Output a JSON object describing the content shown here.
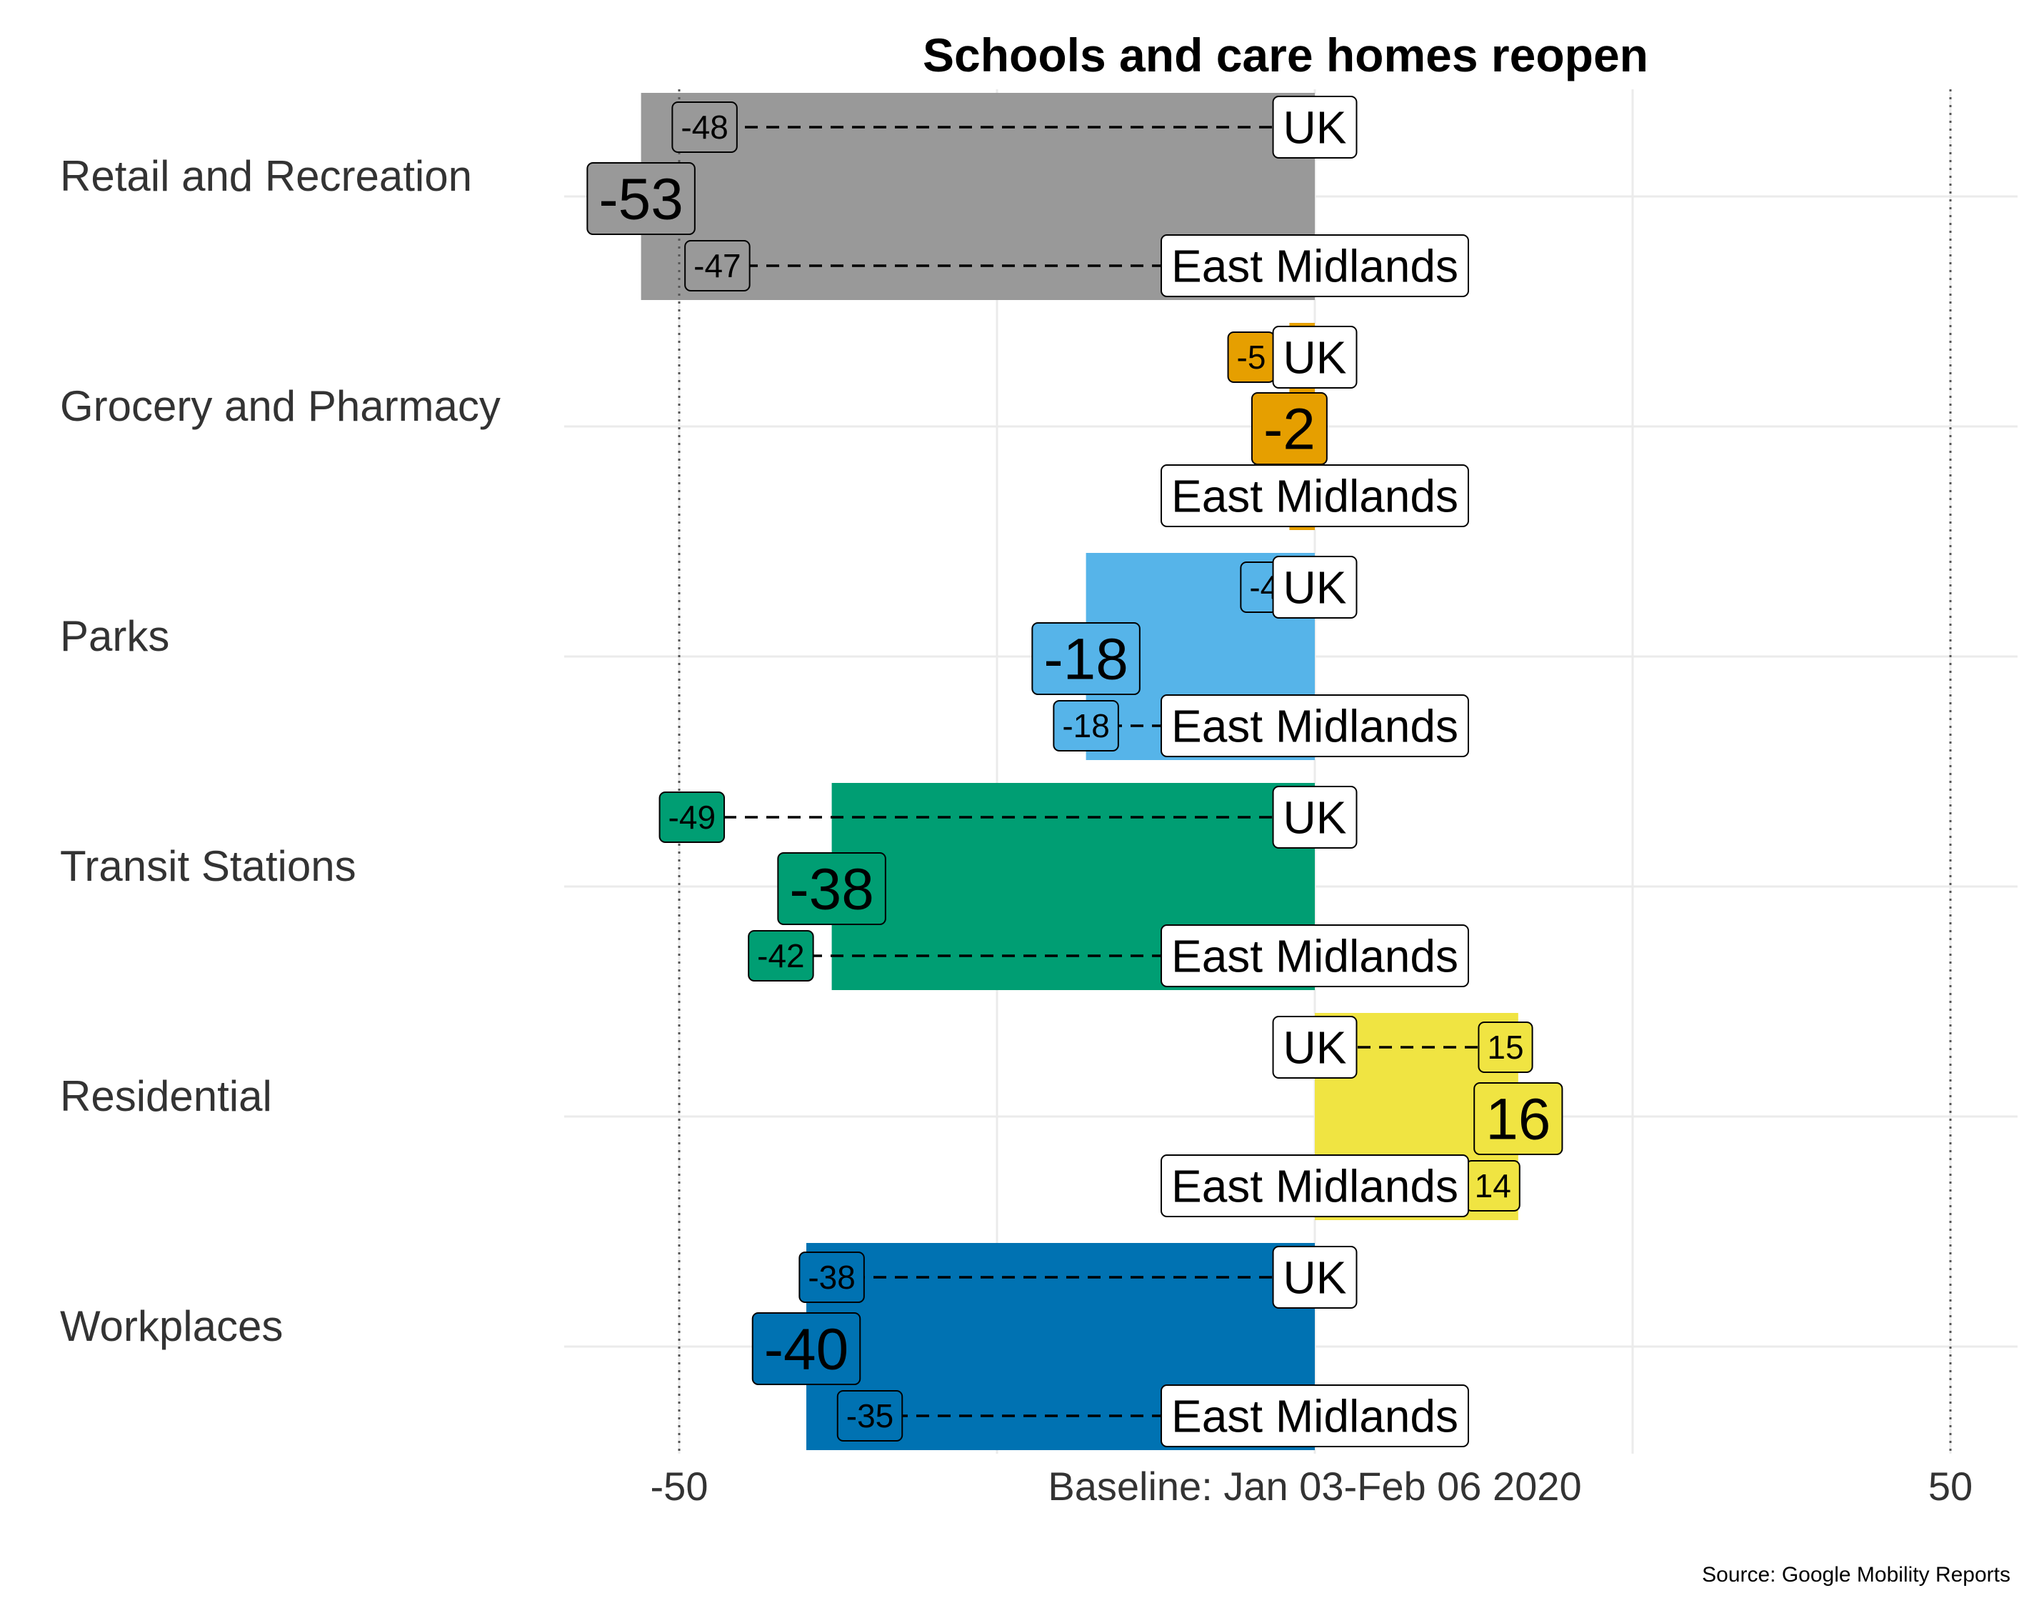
{
  "chart_data": {
    "type": "bar",
    "orientation": "horizontal",
    "title": "Schools and care homes reopen",
    "caption": "Source: Google Mobility Reports",
    "xlabel": "",
    "ylabel": "",
    "xlim": [
      -58,
      55
    ],
    "x_ticks": [
      {
        "value": -50,
        "label": "-50"
      },
      {
        "value": 0,
        "label": "Baseline: Jan 03-Feb 06 2020"
      },
      {
        "value": 50,
        "label": "50"
      }
    ],
    "grid": true,
    "reference_lines": [
      -50,
      50
    ],
    "categories": [
      "Retail and Recreation",
      "Grocery and Pharmacy",
      "Parks",
      "Transit Stations",
      "Residential",
      "Workplaces"
    ],
    "colors": [
      "#999999",
      "#E69F00",
      "#56B4E9",
      "#009E73",
      "#F0E442",
      "#0072B2"
    ],
    "series": [
      {
        "name": "Bar value",
        "values": [
          -53,
          -2,
          -18,
          -38,
          16,
          -40
        ],
        "labels": [
          "-53",
          "-2",
          "-18",
          "-38",
          "16",
          "-40"
        ]
      },
      {
        "name": "UK",
        "values": [
          -48,
          -5,
          -4,
          -49,
          15,
          -38
        ],
        "labels": [
          "-48",
          "-5",
          "-4",
          "-49",
          "15",
          "-38"
        ]
      },
      {
        "name": "East Midlands",
        "values": [
          -47,
          -2,
          -18,
          -42,
          14,
          -35
        ],
        "labels": [
          "-47",
          "-2",
          "-18",
          "-42",
          "14",
          "-35"
        ]
      }
    ],
    "reference_labels": {
      "uk": "UK",
      "region": "East Midlands"
    }
  }
}
